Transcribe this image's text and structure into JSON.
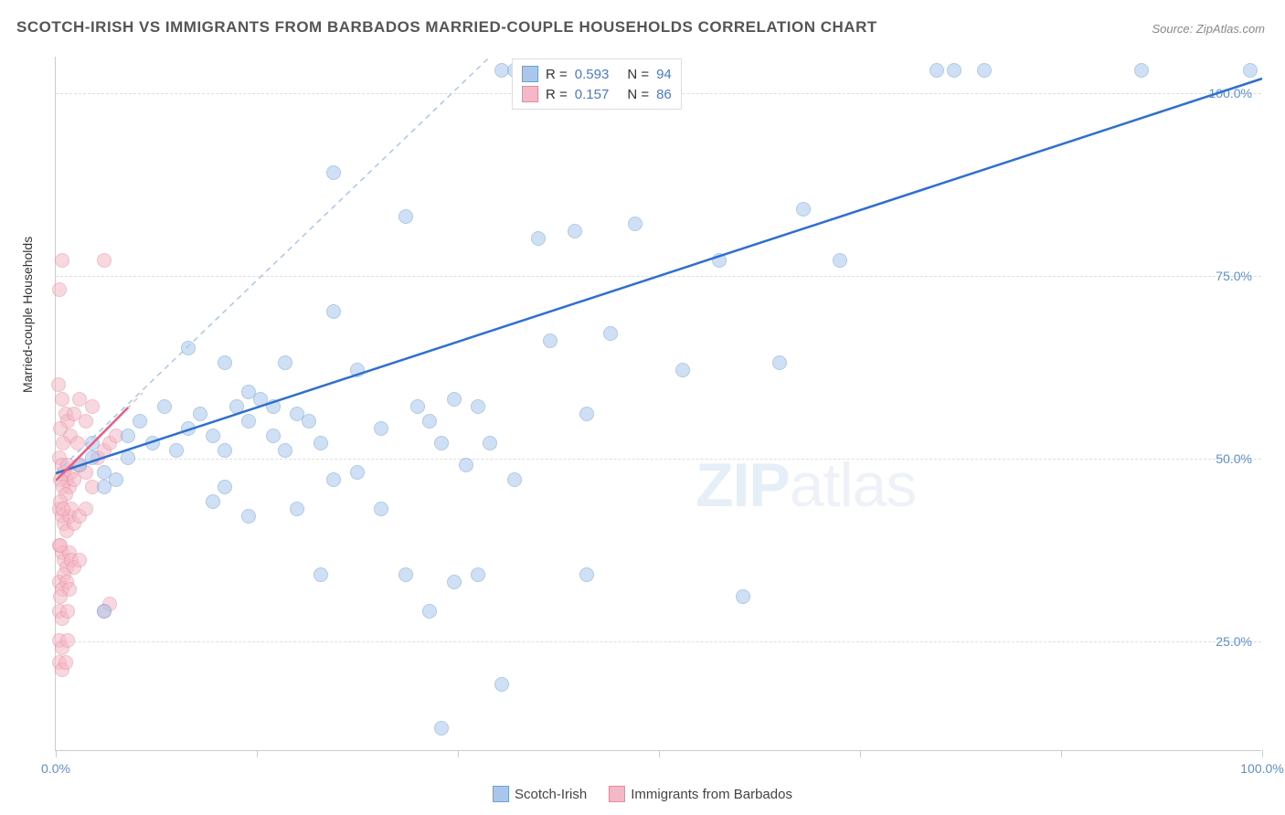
{
  "title": "SCOTCH-IRISH VS IMMIGRANTS FROM BARBADOS MARRIED-COUPLE HOUSEHOLDS CORRELATION CHART",
  "source": "Source: ZipAtlas.com",
  "ylabel": "Married-couple Households",
  "watermark_a": "ZIP",
  "watermark_b": "atlas",
  "chart": {
    "type": "scatter",
    "xlim": [
      0,
      100
    ],
    "ylim": [
      10,
      105
    ],
    "yticks": [
      25.0,
      50.0,
      75.0,
      100.0
    ],
    "ytick_labels": [
      "25.0%",
      "50.0%",
      "75.0%",
      "100.0%"
    ],
    "xticks": [
      0,
      16.67,
      33.33,
      50.0,
      66.67,
      83.33,
      100.0
    ],
    "xtick_labels": {
      "first": "0.0%",
      "last": "100.0%"
    },
    "grid_color": "#dddddd",
    "background_color": "#ffffff",
    "marker_radius": 8,
    "marker_opacity": 0.55,
    "series": [
      {
        "name": "Scotch-Irish",
        "fill_color": "#a9c7ec",
        "stroke_color": "#6f9fd8",
        "line_color": "#2e6fd0",
        "trend_solid": {
          "x1": 0,
          "y1": 48,
          "x2": 100,
          "y2": 102
        },
        "trend_dash": {
          "x1": 0,
          "y1": 48,
          "x2": 36,
          "y2": 105
        },
        "R": "0.593",
        "N": "94",
        "points": [
          [
            37,
            103
          ],
          [
            38,
            103
          ],
          [
            40,
            103
          ],
          [
            41,
            103
          ],
          [
            73,
            103
          ],
          [
            74.5,
            103
          ],
          [
            77,
            103
          ],
          [
            90,
            103
          ],
          [
            99,
            103
          ],
          [
            23,
            89
          ],
          [
            29,
            83
          ],
          [
            40,
            80
          ],
          [
            43,
            81
          ],
          [
            48,
            82
          ],
          [
            62,
            84
          ],
          [
            55,
            77
          ],
          [
            65,
            77
          ],
          [
            11,
            65
          ],
          [
            14,
            63
          ],
          [
            16,
            59
          ],
          [
            18,
            57
          ],
          [
            19,
            63
          ],
          [
            23,
            70
          ],
          [
            25,
            62
          ],
          [
            41,
            66
          ],
          [
            46,
            67
          ],
          [
            60,
            63
          ],
          [
            52,
            62
          ],
          [
            6,
            53
          ],
          [
            7,
            55
          ],
          [
            8,
            52
          ],
          [
            9,
            57
          ],
          [
            10,
            51
          ],
          [
            11,
            54
          ],
          [
            12,
            56
          ],
          [
            13,
            53
          ],
          [
            14,
            51
          ],
          [
            15,
            57
          ],
          [
            16,
            55
          ],
          [
            17,
            58
          ],
          [
            18,
            53
          ],
          [
            19,
            51
          ],
          [
            20,
            56
          ],
          [
            21,
            55
          ],
          [
            22,
            52
          ],
          [
            23,
            47
          ],
          [
            25,
            48
          ],
          [
            27,
            54
          ],
          [
            30,
            57
          ],
          [
            32,
            52
          ],
          [
            34,
            49
          ],
          [
            36,
            52
          ],
          [
            38,
            47
          ],
          [
            27,
            43
          ],
          [
            33,
            58
          ],
          [
            13,
            44
          ],
          [
            14,
            46
          ],
          [
            16,
            42
          ],
          [
            20,
            43
          ],
          [
            2,
            49
          ],
          [
            3,
            50
          ],
          [
            4,
            48
          ],
          [
            5,
            47
          ],
          [
            6,
            50
          ],
          [
            4,
            46
          ],
          [
            3,
            52
          ],
          [
            31,
            55
          ],
          [
            35,
            57
          ],
          [
            44,
            56
          ],
          [
            22,
            34
          ],
          [
            29,
            34
          ],
          [
            33,
            33
          ],
          [
            35,
            34
          ],
          [
            44,
            34
          ],
          [
            57,
            31
          ],
          [
            31,
            29
          ],
          [
            4,
            29
          ],
          [
            37,
            19
          ],
          [
            32,
            13
          ]
        ]
      },
      {
        "name": "Immigrants from Barbados",
        "fill_color": "#f4b9c6",
        "stroke_color": "#e88ba1",
        "line_color": "#e65f83",
        "trend_solid": {
          "x1": 0,
          "y1": 47,
          "x2": 6,
          "y2": 57
        },
        "trend_dash": {
          "x1": 0,
          "y1": 47,
          "x2": 7.2,
          "y2": 59
        },
        "R": "0.157",
        "N": "86",
        "points": [
          [
            0.5,
            77
          ],
          [
            0.3,
            73
          ],
          [
            4,
            77
          ],
          [
            0.2,
            60
          ],
          [
            0.5,
            58
          ],
          [
            0.8,
            56
          ],
          [
            1.0,
            55
          ],
          [
            1.2,
            53
          ],
          [
            0.4,
            54
          ],
          [
            0.6,
            52
          ],
          [
            1.5,
            56
          ],
          [
            2.0,
            58
          ],
          [
            2.5,
            55
          ],
          [
            3.0,
            57
          ],
          [
            1.8,
            52
          ],
          [
            0.3,
            50
          ],
          [
            0.5,
            49
          ],
          [
            0.7,
            48
          ],
          [
            0.9,
            47
          ],
          [
            1.1,
            46
          ],
          [
            1.3,
            48
          ],
          [
            0.4,
            47
          ],
          [
            0.6,
            46
          ],
          [
            0.8,
            45
          ],
          [
            1.0,
            49
          ],
          [
            1.5,
            47
          ],
          [
            2.0,
            49
          ],
          [
            2.5,
            48
          ],
          [
            3.5,
            50
          ],
          [
            4.0,
            51
          ],
          [
            4.5,
            52
          ],
          [
            5.0,
            53
          ],
          [
            3.0,
            46
          ],
          [
            0.3,
            43
          ],
          [
            0.5,
            42
          ],
          [
            0.7,
            41
          ],
          [
            0.9,
            40
          ],
          [
            1.1,
            42
          ],
          [
            1.3,
            43
          ],
          [
            1.5,
            41
          ],
          [
            0.4,
            44
          ],
          [
            0.6,
            43
          ],
          [
            2.0,
            42
          ],
          [
            2.5,
            43
          ],
          [
            0.3,
            38
          ],
          [
            0.5,
            37
          ],
          [
            0.7,
            36
          ],
          [
            0.9,
            35
          ],
          [
            1.1,
            37
          ],
          [
            1.3,
            36
          ],
          [
            0.4,
            38
          ],
          [
            1.5,
            35
          ],
          [
            2.0,
            36
          ],
          [
            0.3,
            33
          ],
          [
            0.5,
            32
          ],
          [
            0.7,
            34
          ],
          [
            0.9,
            33
          ],
          [
            1.1,
            32
          ],
          [
            0.4,
            31
          ],
          [
            0.3,
            29
          ],
          [
            0.5,
            28
          ],
          [
            4.0,
            29
          ],
          [
            4.5,
            30
          ],
          [
            1.0,
            29
          ],
          [
            0.3,
            25
          ],
          [
            0.5,
            24
          ],
          [
            1.0,
            25
          ],
          [
            0.3,
            22
          ],
          [
            0.5,
            21
          ],
          [
            0.8,
            22
          ]
        ]
      }
    ]
  },
  "legend_top": {
    "r_label": "R =",
    "n_label": "N ="
  },
  "legend_bottom": {
    "items": [
      "Scotch-Irish",
      "Immigrants from Barbados"
    ]
  }
}
